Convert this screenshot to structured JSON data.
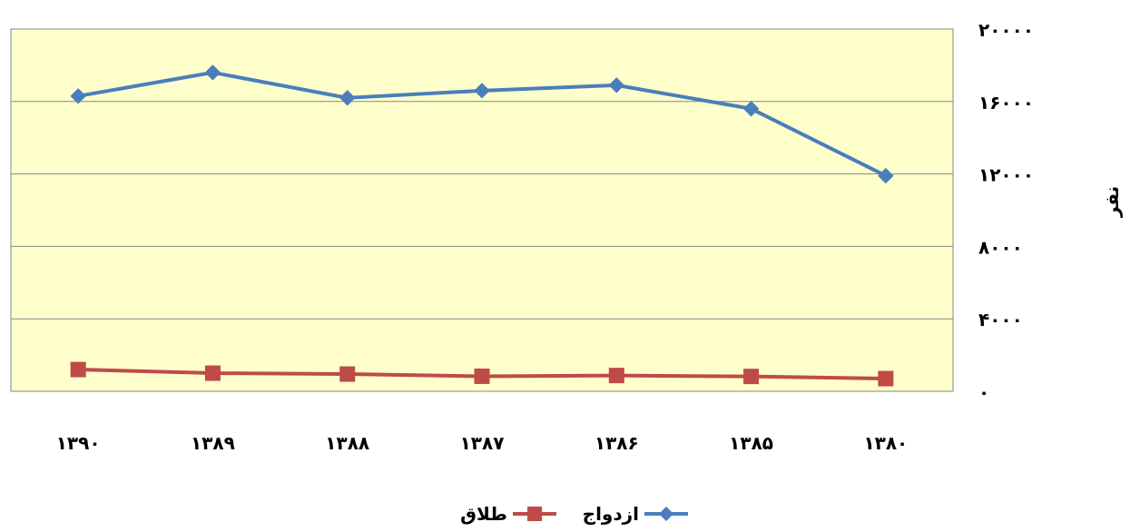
{
  "chart_data": {
    "type": "line",
    "categories": [
      "۱۳۹۰",
      "۱۳۸۹",
      "۱۳۸۸",
      "۱۳۸۷",
      "۱۳۸۶",
      "۱۳۸۵",
      "۱۳۸۰"
    ],
    "series": [
      {
        "name": "ازدواج",
        "color": "#4a7ebb",
        "marker": "diamond",
        "values": [
          16300,
          17600,
          16200,
          16600,
          16900,
          15600,
          11900
        ]
      },
      {
        "name": "طلاق",
        "color": "#be4b48",
        "marker": "square",
        "values": [
          1200,
          1000,
          950,
          830,
          870,
          820,
          700
        ]
      }
    ],
    "yticks": [
      "۰",
      "۴۰۰۰",
      "۸۰۰۰",
      "۱۲۰۰۰",
      "۱۶۰۰۰",
      "۲۰۰۰۰"
    ],
    "ylim": [
      0,
      20000
    ],
    "ylabel": "نفر",
    "grid": true,
    "plot_background": "#ffffcc",
    "legend_position": "bottom"
  }
}
